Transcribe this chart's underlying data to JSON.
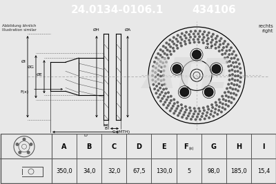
{
  "title_part1": "24.0134-0106.1",
  "title_part2": "434106",
  "title_bg": "#1a5faa",
  "title_fg": "#ffffff",
  "note_line1": "Abbildung ähnlich",
  "note_line2": "Illustration similar",
  "side_label1": "rechts",
  "side_label2": "right",
  "col_headers": [
    "A",
    "B",
    "C",
    "D",
    "E",
    "F(x)",
    "G",
    "H",
    "I"
  ],
  "col_values": [
    "350,0",
    "34,0",
    "32,0",
    "67,5",
    "130,0",
    "5",
    "98,0",
    "185,0",
    "15,4"
  ],
  "line_color": "#000000",
  "bg_color": "#ffffff",
  "hatch_color": "#444444",
  "fig_bg": "#e8e8e8"
}
